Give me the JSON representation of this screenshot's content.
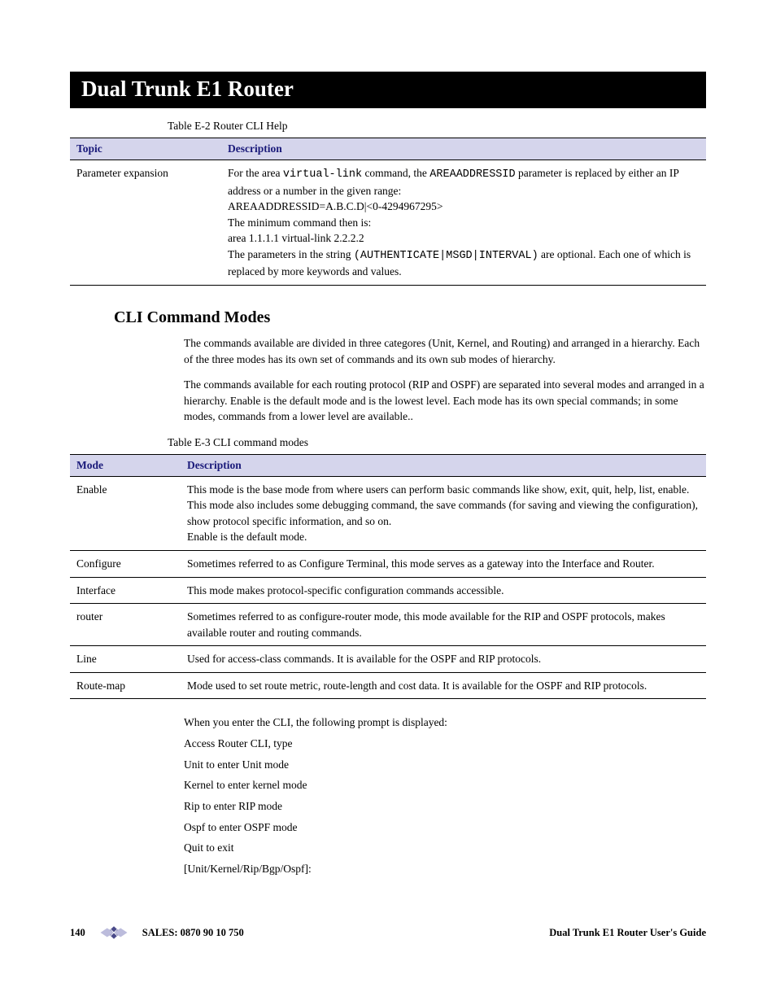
{
  "banner": {
    "title": "Dual Trunk E1 Router"
  },
  "table1": {
    "caption": "Table E-2   Router CLI Help",
    "headers": {
      "c1": "Topic",
      "c2": "Description"
    },
    "row": {
      "topic": "Parameter expansion",
      "d1a": "For the area ",
      "d1b": "virtual-link",
      "d1c": " command, the ",
      "d1d": "AREAADDRESSID",
      "d1e": " parameter is replaced by either an IP address or a number in the given range:",
      "d2": "AREAADDRESSID=A.B.C.D|<0-4294967295>",
      "d3": "The minimum command then is:",
      "d4": "area 1.1.1.1 virtual-link 2.2.2.2",
      "d5a": "The parameters in the string ",
      "d5b": "(AUTHENTICATE|MSGD|INTERVAL)",
      "d5c": " are optional. Each one of which is replaced by more keywords and values."
    }
  },
  "section": {
    "heading": "CLI Command Modes",
    "p1": "The commands available are divided in three categores (Unit, Kernel, and Routing) and arranged in a hierarchy. Each of the three modes has its own set of  commands and its own sub modes of hierarchy.",
    "p2": "The commands available for each routing protocol (RIP and OSPF)  are separated into several modes and arranged in a hierarchy. Enable is the default mode and is the lowest level. Each mode has its own special commands; in some modes, commands from a lower level are available.."
  },
  "table2": {
    "caption": "Table E-3    CLI command modes",
    "headers": {
      "c1": "Mode",
      "c2": "Description"
    },
    "rows": [
      {
        "mode": "Enable",
        "desc": "This mode is the base mode from where users can perform basic commands like show, exit, quit, help, list, enable. This mode also includes some debugging command, the save commands (for saving and viewing the configuration), show protocol specific information, and so on.\nEnable is the default mode."
      },
      {
        "mode": "Configure",
        "desc": "Sometimes referred to as Configure Terminal, this mode serves as a gateway into the Interface and Router."
      },
      {
        "mode": "Interface",
        "desc": "This mode makes protocol-specific configuration commands accessible."
      },
      {
        "mode": "router",
        "desc": "Sometimes referred to as configure-router mode, this mode  available for the RIP and OSPF protocols, makes available router and routing commands."
      },
      {
        "mode": "Line",
        "desc": "Used for access-class commands. It is available for the OSPF and RIP protocols."
      },
      {
        "mode": "Route-map",
        "desc": "Mode used to set route metric, route-length and cost data. It is available for the OSPF and RIP protocols."
      }
    ]
  },
  "prompts": {
    "p0": "When you enter the CLI, the following prompt is displayed:",
    "p1": "Access Router CLI, type",
    "p2": "Unit to enter Unit mode",
    "p3": "Kernel to enter kernel mode",
    "p4": "Rip to enter RIP mode",
    "p5": "Ospf to enter OSPF mode",
    "p6": "Quit to exit",
    "p7": "[Unit/Kernel/Rip/Bgp/Ospf]:"
  },
  "footer": {
    "page": "140",
    "sales": "SALES: 0870 90 10 750",
    "guide": "Dual Trunk E1 Router User's Guide",
    "logo_colors": {
      "fill": "#4a4a8a",
      "light": "#bcbcdc"
    }
  }
}
